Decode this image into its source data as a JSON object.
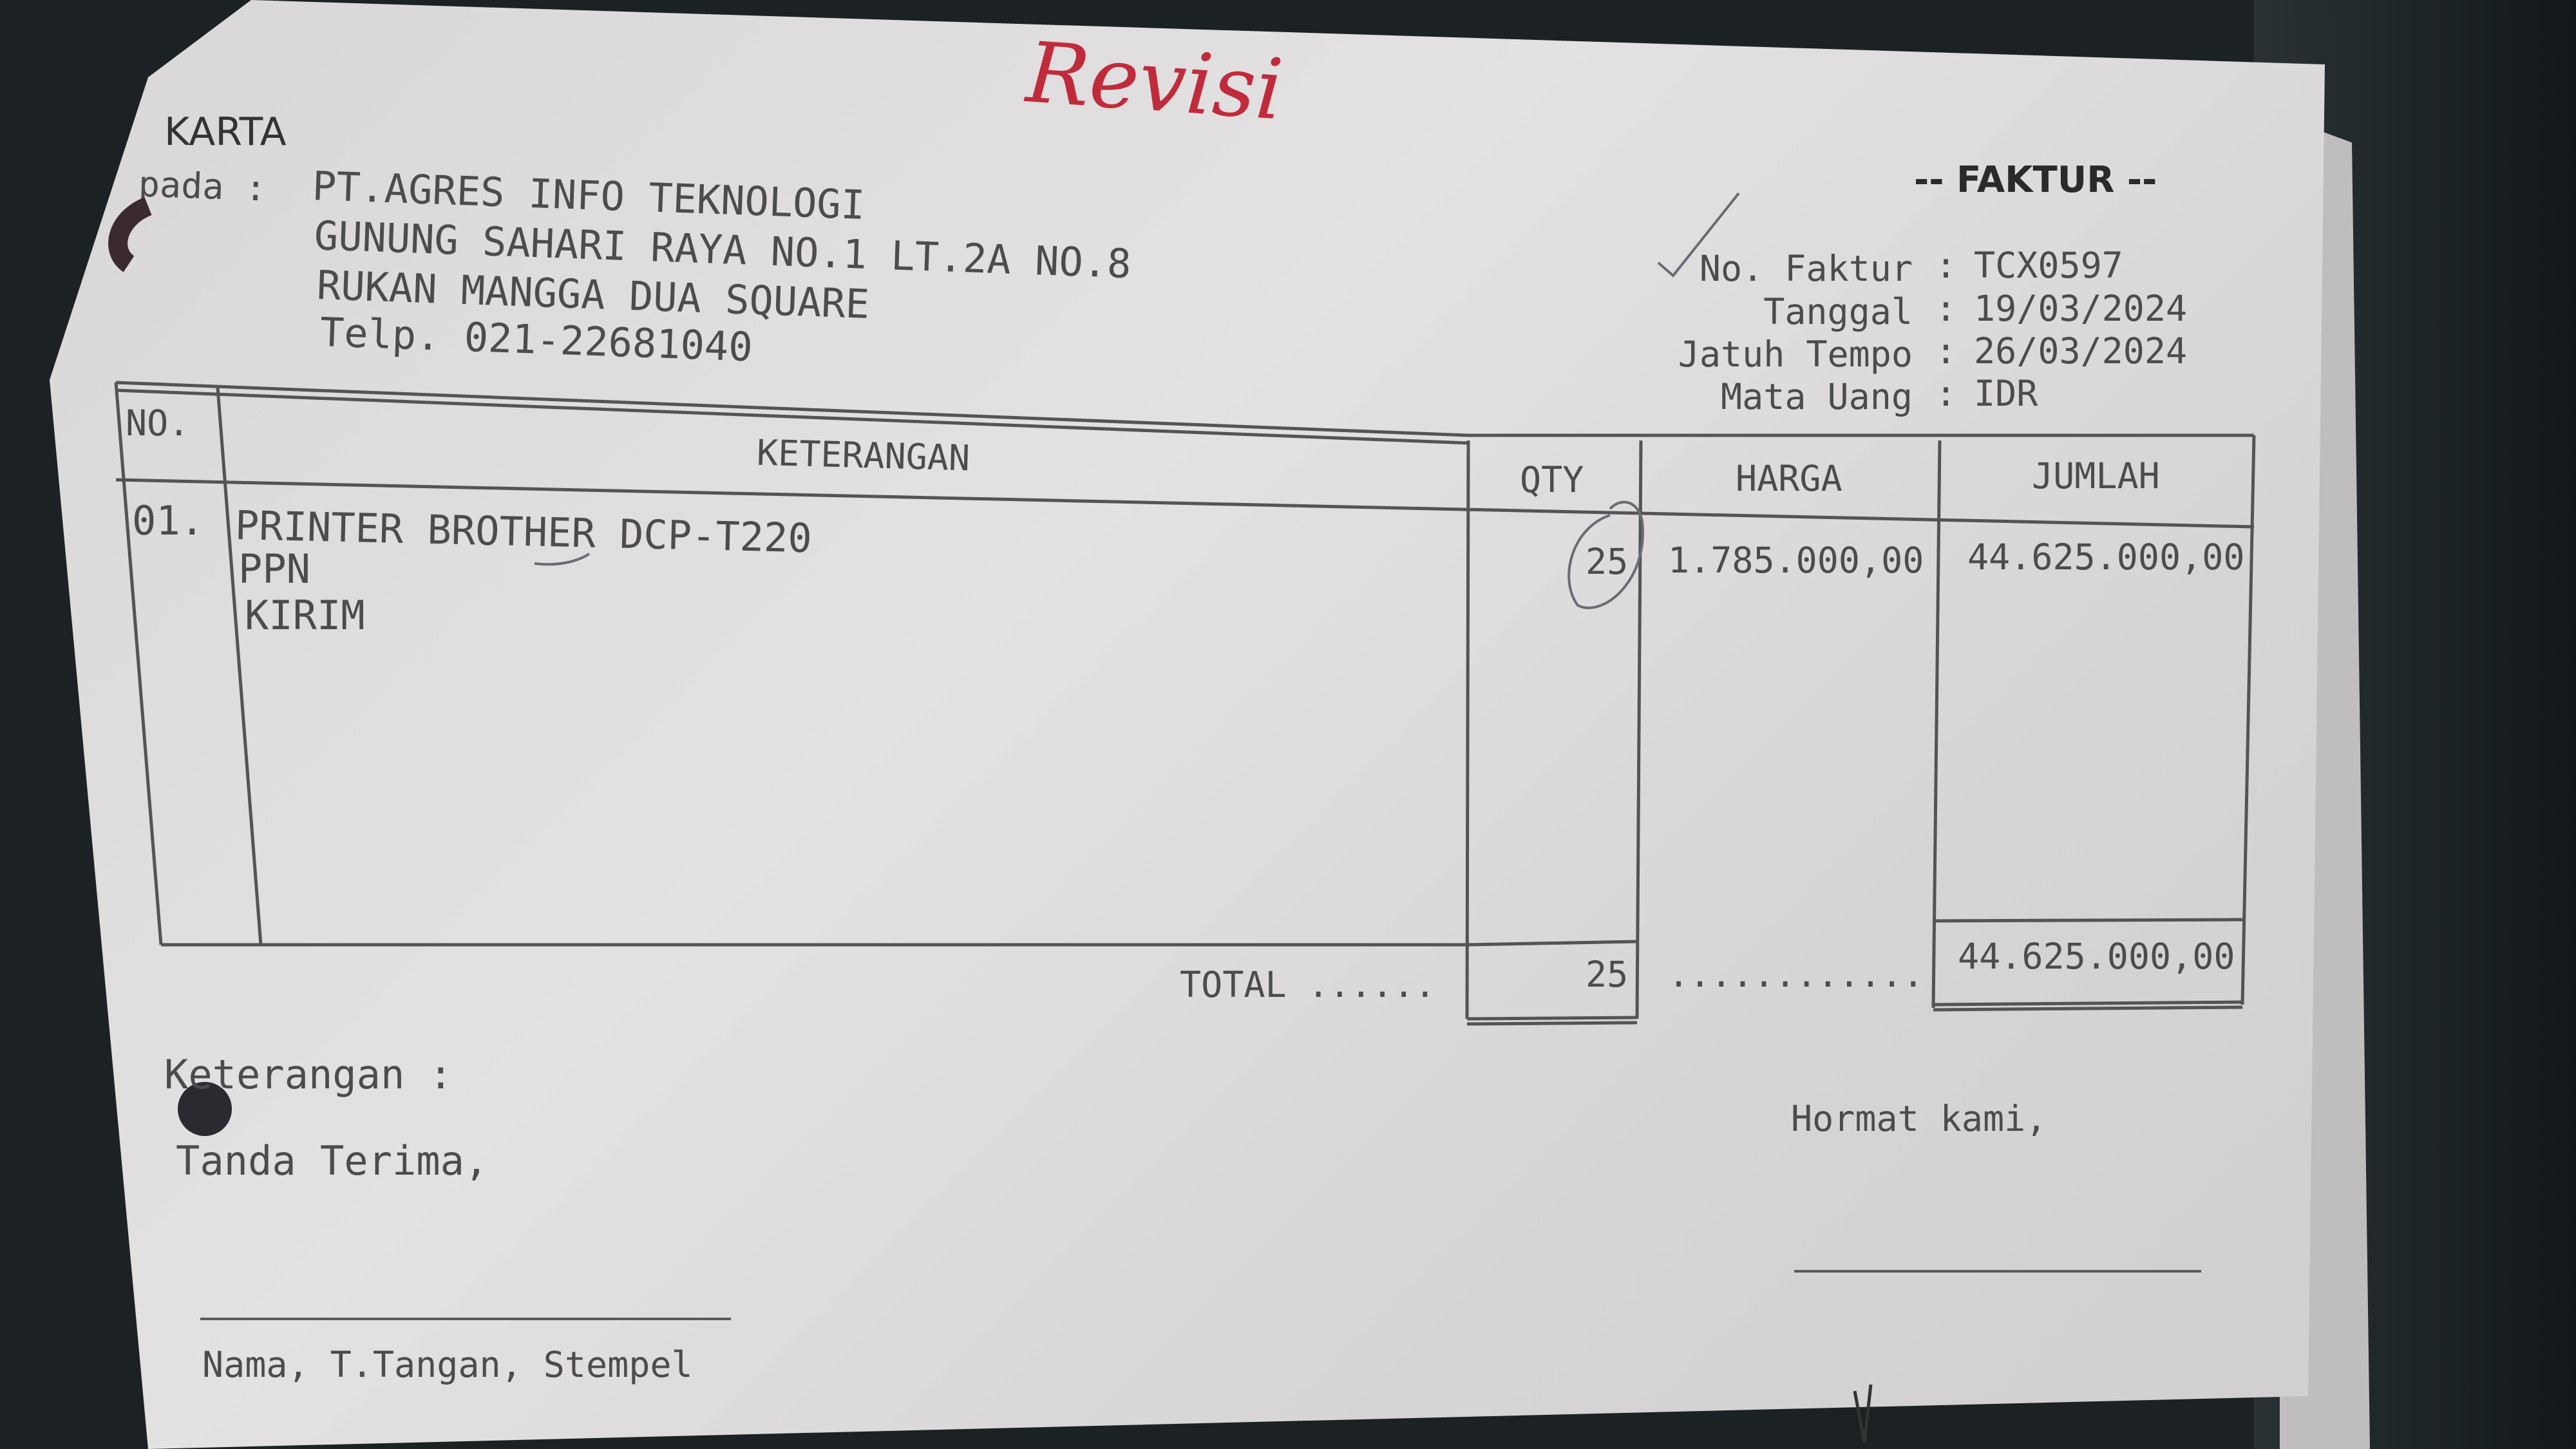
{
  "annotation": {
    "revisi": "Revisi"
  },
  "sender": {
    "partial_city": "KARTA"
  },
  "recipient": {
    "label": "pada :",
    "name": "PT.AGRES INFO TEKNOLOGI",
    "address1": "GUNUNG SAHARI RAYA NO.1 LT.2A NO.8",
    "address2": "RUKAN MANGGA DUA SQUARE",
    "phone": "Telp. 021-22681040"
  },
  "invoice": {
    "title": "-- FAKTUR --",
    "fields": [
      {
        "label": "No. Faktur",
        "value": "TCX0597"
      },
      {
        "label": "Tanggal",
        "value": "19/03/2024"
      },
      {
        "label": "Jatuh Tempo",
        "value": "26/03/2024"
      },
      {
        "label": "Mata Uang",
        "value": "IDR"
      }
    ]
  },
  "table": {
    "headers": {
      "no": "NO.",
      "keterangan": "KETERANGAN",
      "qty": "QTY",
      "harga": "HARGA",
      "jumlah": "JUMLAH"
    },
    "rows": [
      {
        "no": "01.",
        "lines": [
          "PRINTER BROTHER DCP-T220",
          "PPN",
          "KIRIM"
        ],
        "qty": "25",
        "harga": "1.785.000,00",
        "jumlah": "44.625.000,00"
      }
    ],
    "total": {
      "label": "TOTAL ......",
      "qty": "25",
      "harga": "............",
      "jumlah": "44.625.000,00"
    }
  },
  "footer": {
    "keterangan": "Keterangan :",
    "tanda_terima": "Tanda Terima,",
    "signature_caption": "Nama, T.Tangan, Stempel",
    "hormat": "Hormat kami,"
  },
  "colors": {
    "paper": "#dcdada",
    "ink": "#4c4b4d",
    "annotation_red": "#c02b3c",
    "background": "#1c2224"
  }
}
